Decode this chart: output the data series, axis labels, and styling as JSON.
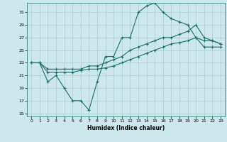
{
  "xlabel": "Humidex (Indice chaleur)",
  "bg_color": "#cce8ec",
  "grid_color": "#aacccc",
  "line_color": "#1a6e6a",
  "xlim": [
    -0.5,
    23.5
  ],
  "ylim": [
    14.5,
    32.5
  ],
  "xticks": [
    0,
    1,
    2,
    3,
    4,
    5,
    6,
    7,
    8,
    9,
    10,
    11,
    12,
    13,
    14,
    15,
    16,
    17,
    18,
    19,
    20,
    21,
    22,
    23
  ],
  "yticks": [
    15,
    17,
    19,
    21,
    23,
    25,
    27,
    29,
    31
  ],
  "line1_x": [
    0,
    1,
    2,
    3,
    4,
    5,
    6,
    7,
    8,
    9,
    10,
    11,
    12,
    13,
    14,
    15,
    16,
    17,
    18,
    19,
    20,
    21,
    22,
    23
  ],
  "line1_y": [
    23,
    23,
    20,
    21,
    19,
    17,
    17,
    15.5,
    20,
    24,
    24,
    27,
    27,
    31,
    32,
    32.5,
    31,
    30,
    29.5,
    29,
    27,
    26.5,
    26.5,
    26
  ],
  "line2_x": [
    0,
    1,
    2,
    3,
    4,
    5,
    6,
    7,
    8,
    9,
    10,
    11,
    12,
    13,
    14,
    15,
    16,
    17,
    18,
    19,
    20,
    21,
    22,
    23
  ],
  "line2_y": [
    23,
    23,
    22,
    22,
    22,
    22,
    22,
    22.5,
    22.5,
    23,
    23.5,
    24,
    25,
    25.5,
    26,
    26.5,
    27,
    27,
    27.5,
    28,
    29,
    27,
    26.5,
    26
  ],
  "line3_x": [
    0,
    1,
    2,
    3,
    4,
    5,
    6,
    7,
    8,
    9,
    10,
    11,
    12,
    13,
    14,
    15,
    16,
    17,
    18,
    19,
    20,
    21,
    22,
    23
  ],
  "line3_y": [
    23,
    23,
    21.5,
    21.5,
    21.5,
    21.5,
    21.8,
    22,
    22,
    22.2,
    22.5,
    23,
    23.5,
    24,
    24.5,
    25,
    25.5,
    26,
    26.2,
    26.5,
    27,
    25.5,
    25.5,
    25.5
  ]
}
